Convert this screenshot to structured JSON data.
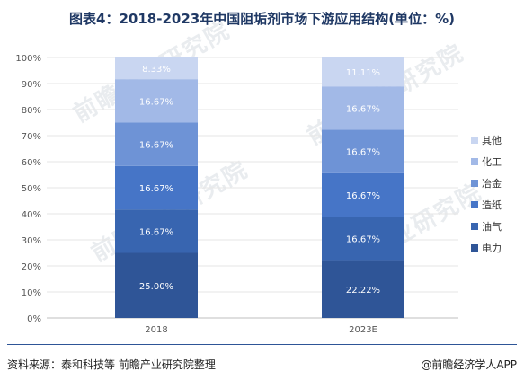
{
  "title": "图表4：2018-2023年中国阻垢剂市场下游应用结构(单位：%)",
  "footer": {
    "source": "资料来源：泰和科技等 前瞻产业研究院整理",
    "brand": "@前瞻经济学人APP"
  },
  "watermark": "前瞻产业研究院",
  "chart_data": {
    "type": "bar",
    "stacked": true,
    "title": "图表4：2018-2023年中国阻垢剂市场下游应用结构(单位：%)",
    "categories": [
      "2018",
      "2023E"
    ],
    "ylim": [
      0,
      100
    ],
    "yticks": [
      "0%",
      "10%",
      "20%",
      "30%",
      "40%",
      "50%",
      "60%",
      "70%",
      "80%",
      "90%",
      "100%"
    ],
    "legend_position": "right",
    "series": [
      {
        "name": "电力",
        "values": [
          25.0,
          22.22
        ],
        "labels": [
          "25.00%",
          "22.22%"
        ],
        "color": "#2f5597"
      },
      {
        "name": "油气",
        "values": [
          16.67,
          16.67
        ],
        "labels": [
          "16.67%",
          "16.67%"
        ],
        "color": "#3865b0"
      },
      {
        "name": "造纸",
        "values": [
          16.67,
          16.67
        ],
        "labels": [
          "16.67%",
          "16.67%"
        ],
        "color": "#4675c7"
      },
      {
        "name": "冶金",
        "values": [
          16.67,
          16.67
        ],
        "labels": [
          "16.67%",
          "16.67%"
        ],
        "color": "#6e93d6"
      },
      {
        "name": "化工",
        "values": [
          16.67,
          16.67
        ],
        "labels": [
          "16.67%",
          "16.67%"
        ],
        "color": "#a2b9e7"
      },
      {
        "name": "其他",
        "values": [
          8.33,
          11.11
        ],
        "labels": [
          "8.33%",
          "11.11%"
        ],
        "color": "#c9d6f1"
      }
    ]
  }
}
